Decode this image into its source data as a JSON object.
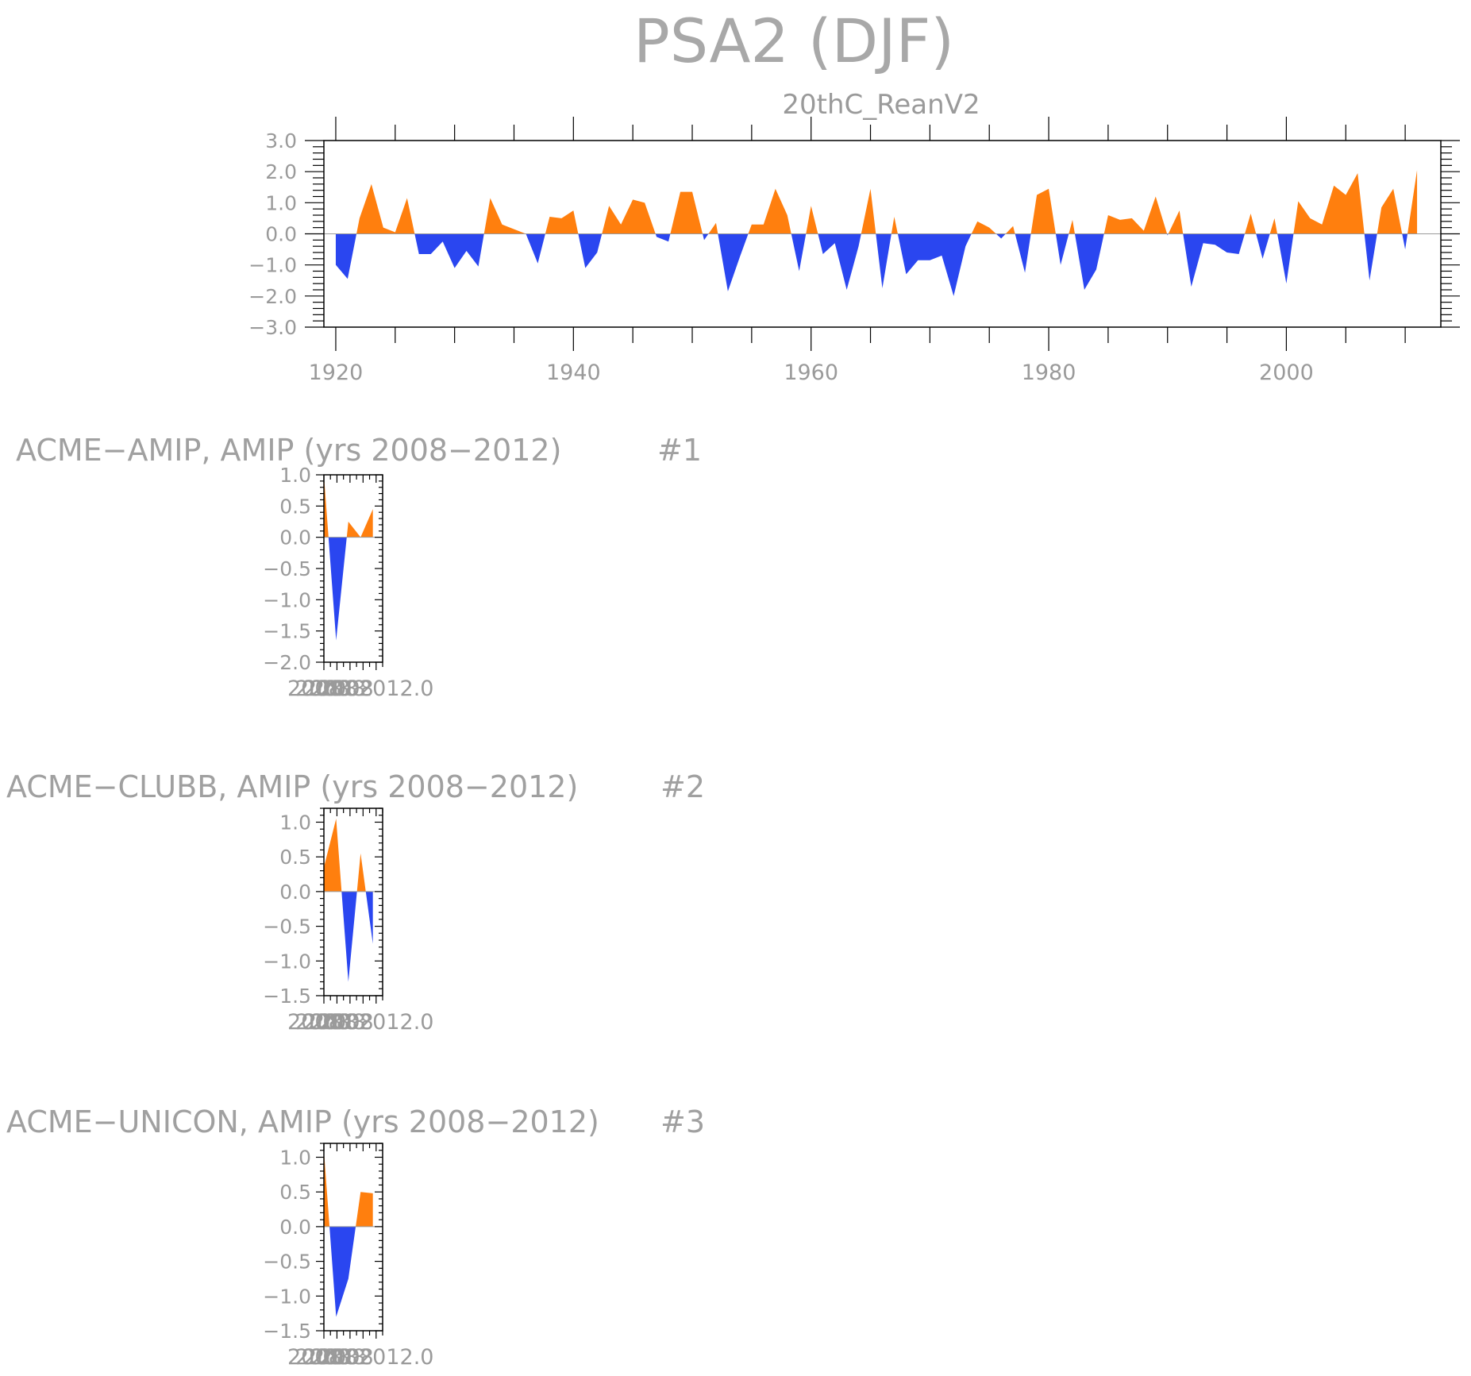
{
  "main_title": "PSA2 (DJF)",
  "chart_data": [
    {
      "type": "area",
      "subtitle": "20thC_ReanV2",
      "positive_color": "#ff7f0e",
      "negative_color": "#2a46f0",
      "xlim": [
        1919,
        2013
      ],
      "ylim": [
        -3.0,
        3.0
      ],
      "x_ticks": [
        "1920",
        "1940",
        "1960",
        "1980",
        "2000"
      ],
      "y_ticks": [
        "3.0",
        "2.0",
        "1.0",
        "0.0",
        "−1.0",
        "−2.0",
        "−3.0"
      ],
      "x": [
        1920,
        1921,
        1922,
        1923,
        1924,
        1925,
        1926,
        1927,
        1928,
        1929,
        1930,
        1931,
        1932,
        1933,
        1934,
        1935,
        1936,
        1937,
        1938,
        1939,
        1940,
        1941,
        1942,
        1943,
        1944,
        1945,
        1946,
        1947,
        1948,
        1949,
        1950,
        1951,
        1952,
        1953,
        1954,
        1955,
        1956,
        1957,
        1958,
        1959,
        1960,
        1961,
        1962,
        1963,
        1964,
        1965,
        1966,
        1967,
        1968,
        1969,
        1970,
        1971,
        1972,
        1973,
        1974,
        1975,
        1976,
        1977,
        1978,
        1979,
        1980,
        1981,
        1982,
        1983,
        1984,
        1985,
        1986,
        1987,
        1988,
        1989,
        1990,
        1991,
        1992,
        1993,
        1994,
        1995,
        1996,
        1997,
        1998,
        1999,
        2000,
        2001,
        2002,
        2003,
        2004,
        2005,
        2006,
        2007,
        2008,
        2009,
        2010,
        2011
      ],
      "values": [
        -1.0,
        -1.45,
        0.5,
        1.6,
        0.2,
        0.05,
        1.15,
        -0.65,
        -0.65,
        -0.25,
        -1.1,
        -0.55,
        -1.05,
        1.15,
        0.3,
        0.15,
        0.0,
        -0.95,
        0.55,
        0.5,
        0.75,
        -1.1,
        -0.6,
        0.9,
        0.3,
        1.1,
        1.0,
        -0.1,
        -0.25,
        1.35,
        1.35,
        -0.2,
        0.35,
        -1.85,
        -0.75,
        0.3,
        0.3,
        1.45,
        0.6,
        -1.2,
        0.9,
        -0.65,
        -0.3,
        -1.8,
        -0.4,
        1.45,
        -1.75,
        0.55,
        -1.3,
        -0.85,
        -0.85,
        -0.7,
        -2.0,
        -0.4,
        0.4,
        0.2,
        -0.15,
        0.25,
        -1.25,
        1.25,
        1.45,
        -1.0,
        0.45,
        -1.8,
        -1.15,
        0.6,
        0.45,
        0.5,
        0.1,
        1.2,
        -0.05,
        0.75,
        -1.7,
        -0.3,
        -0.35,
        -0.6,
        -0.65,
        0.65,
        -0.8,
        0.5,
        -1.6,
        1.05,
        0.5,
        0.3,
        1.55,
        1.25,
        1.95,
        -1.5,
        0.85,
        1.45,
        -0.5,
        2.05
      ]
    },
    {
      "type": "area",
      "title": "ACME−AMIP, AMIP (yrs 2008−2012)",
      "label": "#1",
      "positive_color": "#ff7f0e",
      "negative_color": "#2a46f0",
      "ylim": [
        -2.0,
        1.0
      ],
      "y_ticks": [
        "1.0",
        "0.5",
        "0.0",
        "−0.5",
        "−1.0",
        "−1.5",
        "−2.0"
      ],
      "x_ticks_text": "2008",
      "x_ticks_text2": "2012.0",
      "x": [
        2008,
        2009,
        2010,
        2011,
        2012
      ],
      "values": [
        1.0,
        -1.65,
        0.25,
        0.0,
        0.45
      ]
    },
    {
      "type": "area",
      "title": "ACME−CLUBB, AMIP (yrs 2008−2012)",
      "label": "#2",
      "positive_color": "#ff7f0e",
      "negative_color": "#2a46f0",
      "ylim": [
        -1.5,
        1.2
      ],
      "y_ticks": [
        "1.0",
        "0.5",
        "0.0",
        "−0.5",
        "−1.0",
        "−1.5"
      ],
      "x_ticks_text": "2008",
      "x_ticks_text2": "2012.0",
      "x": [
        2008,
        2009,
        2010,
        2011,
        2012
      ],
      "values": [
        0.35,
        1.05,
        -1.3,
        0.55,
        -0.75
      ]
    },
    {
      "type": "area",
      "title": "ACME−UNICON, AMIP (yrs 2008−2012)",
      "label": "#3",
      "positive_color": "#ff7f0e",
      "negative_color": "#2a46f0",
      "ylim": [
        -1.5,
        1.2
      ],
      "y_ticks": [
        "1.0",
        "0.5",
        "0.0",
        "−0.5",
        "−1.0",
        "−1.5"
      ],
      "x_ticks_text": "2008",
      "x_ticks_text2": "2012.0",
      "x": [
        2008,
        2009,
        2010,
        2011,
        2012
      ],
      "values": [
        1.1,
        -1.3,
        -0.75,
        0.5,
        0.48
      ]
    }
  ]
}
